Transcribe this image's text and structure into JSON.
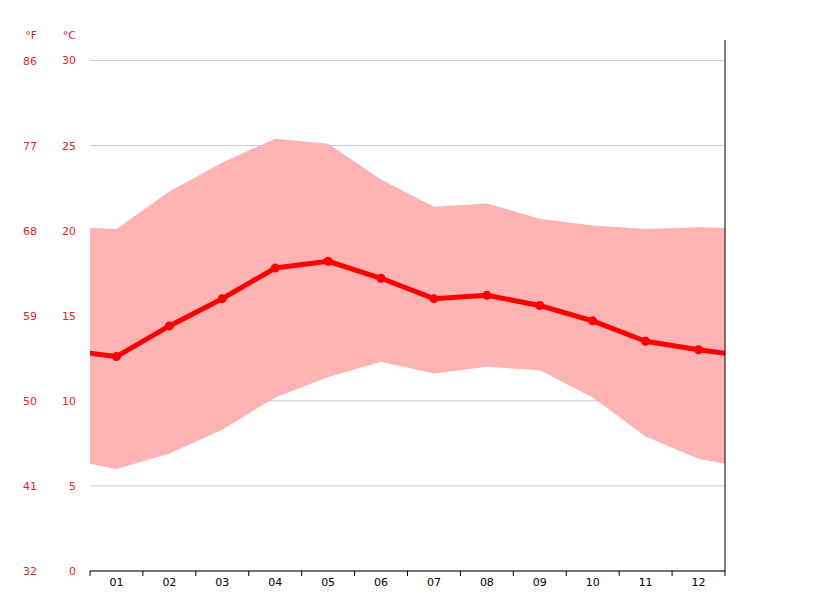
{
  "chart_data": {
    "type": "line",
    "y_label": "°C",
    "y2_label": "°F",
    "categories": [
      "01",
      "02",
      "03",
      "04",
      "05",
      "06",
      "07",
      "08",
      "09",
      "10",
      "11",
      "12"
    ],
    "series": [
      {
        "type": "range",
        "color": "#ffb3b3",
        "high": [
          20.1,
          22.3,
          24.0,
          25.4,
          25.1,
          23.0,
          21.4,
          21.6,
          20.7,
          20.3,
          20.1,
          20.2
        ],
        "low": [
          6.0,
          6.9,
          8.3,
          10.2,
          11.4,
          12.3,
          11.6,
          12.0,
          11.8,
          10.2,
          7.9,
          6.6
        ]
      },
      {
        "type": "line",
        "color": "#ff0000",
        "marker": "circle",
        "values": [
          12.6,
          14.4,
          16.0,
          17.8,
          18.2,
          17.2,
          16.0,
          16.2,
          15.6,
          14.7,
          13.5,
          13.0
        ]
      }
    ],
    "ylim": [
      0,
      31.2
    ],
    "yticks": [
      0,
      5,
      10,
      15,
      20,
      25,
      30
    ],
    "y2lim": [
      32,
      88.2
    ],
    "y2ticks": [
      32,
      41,
      50,
      59,
      68,
      77,
      86
    ],
    "grid": true
  }
}
